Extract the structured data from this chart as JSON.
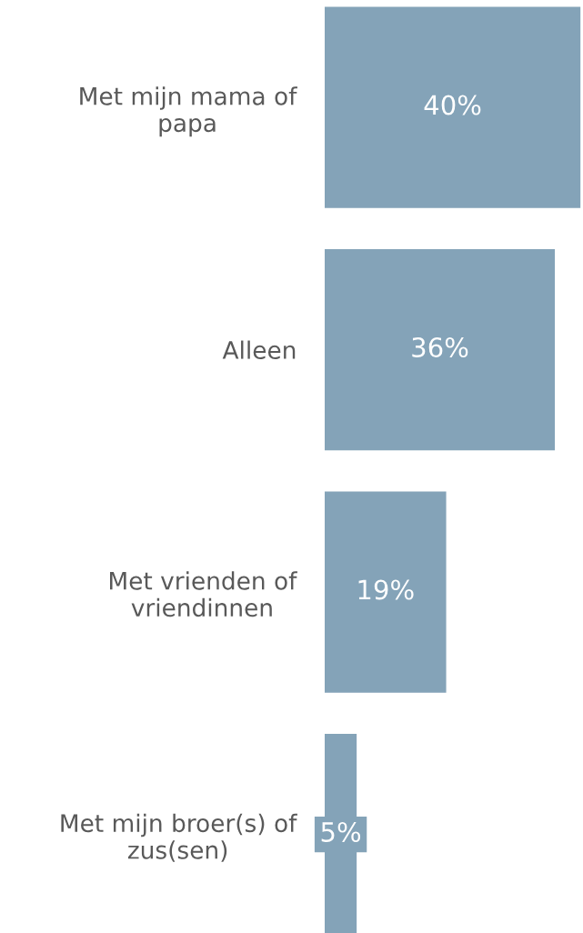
{
  "chart_data": {
    "type": "bar",
    "orientation": "horizontal",
    "categories": [
      "Met mijn mama of\npapa",
      "Alleen",
      "Met vrienden of\nvriendinnen",
      "Met mijn broer(s) of\nzus(sen)"
    ],
    "values": [
      40,
      36,
      19,
      5
    ],
    "value_labels": [
      "40%",
      "36%",
      "19%",
      "5%"
    ],
    "color": "#84a3b8",
    "grid": false,
    "legend": false
  }
}
